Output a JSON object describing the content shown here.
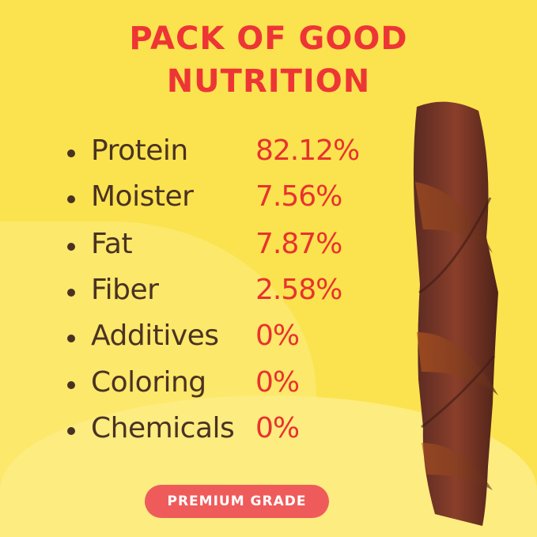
{
  "title": {
    "line1": "PACK OF GOOD",
    "line2": "NUTRITION"
  },
  "nutrition": [
    {
      "label": "Protein",
      "value": "82.12%"
    },
    {
      "label": "Moister",
      "value": "7.56%"
    },
    {
      "label": "Fat",
      "value": "7.87%"
    },
    {
      "label": "Fiber",
      "value": "2.58%"
    },
    {
      "label": "Additives",
      "value": "0%"
    },
    {
      "label": "Coloring",
      "value": "0%"
    },
    {
      "label": "Chemicals",
      "value": "0%"
    }
  ],
  "badge": {
    "label": "PREMIUM GRADE"
  },
  "colors": {
    "background": "#fbe34f",
    "title": "#ee3535",
    "value": "#e8322e",
    "label": "#4a3223",
    "badge": "#ef5b5b"
  }
}
